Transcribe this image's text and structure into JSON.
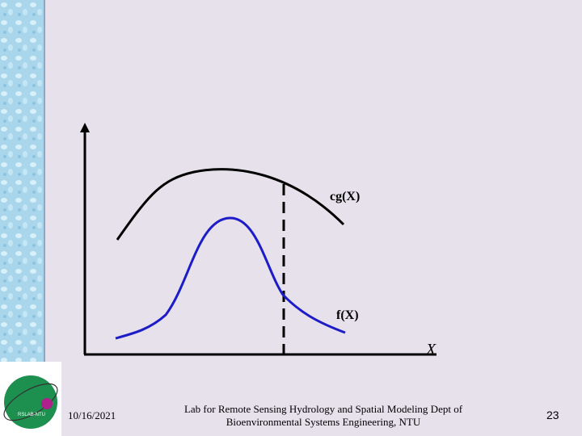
{
  "diagram": {
    "curve_cg_label": "cg(X)",
    "curve_f_label": "f(X)",
    "x_axis_label": "X"
  },
  "logo": {
    "text": "RSLAB-NTU"
  },
  "footer": {
    "date": "10/16/2021",
    "lab_line1": "Lab for Remote Sensing Hydrology and Spatial Modeling Dept of",
    "lab_line2": "Bioenvironmental Systems Engineering, NTU",
    "page": "23"
  },
  "colors": {
    "background": "#e7e1ec",
    "curve_cg": "#000000",
    "curve_f": "#1c1cc8",
    "sidebar": "#a9d6ea"
  }
}
